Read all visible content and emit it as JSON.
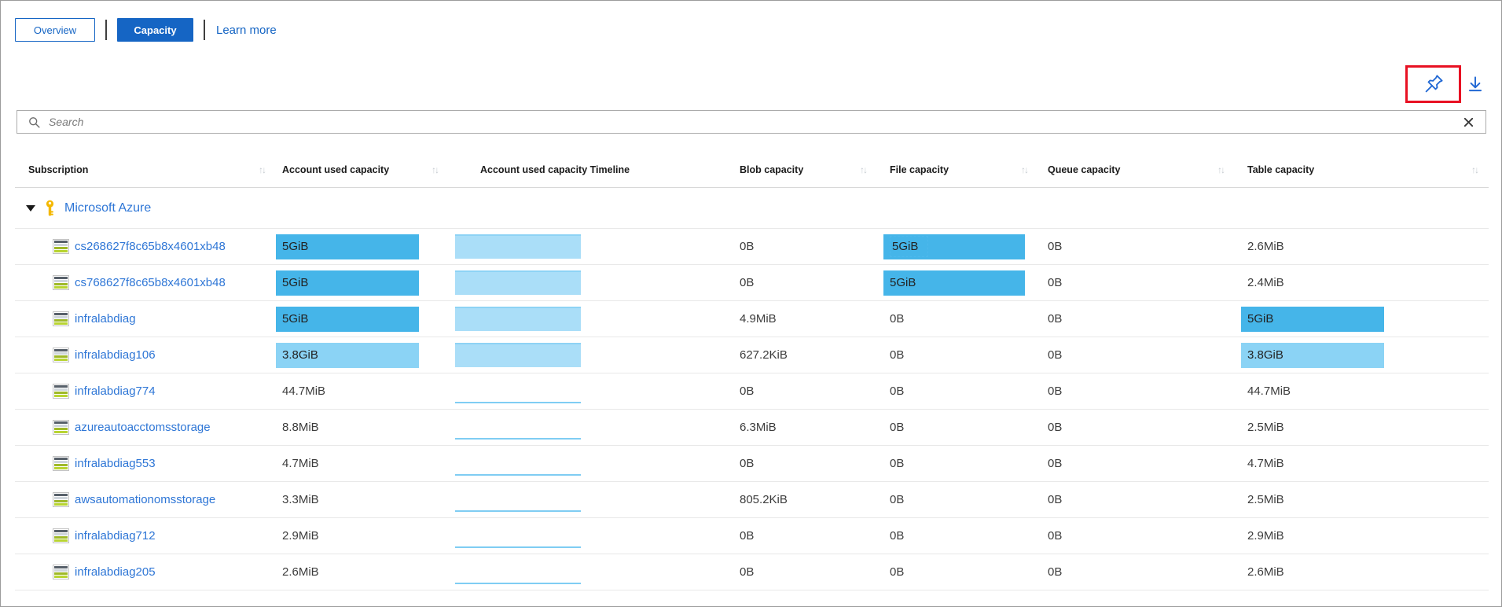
{
  "toolbar": {
    "overview_label": "Overview",
    "capacity_label": "Capacity",
    "learn_more_label": "Learn more"
  },
  "icons": {
    "pin": "pushpin-icon",
    "download": "download-icon",
    "search": "magnifier-icon",
    "clear": "x-icon",
    "sort_glyph": "↑↓",
    "expander": "collapse-triangle",
    "group_key": "key-icon",
    "row_icon": "storage-account-icon"
  },
  "colors": {
    "accent_blue": "#1565c4",
    "link_blue": "#2e76d6",
    "red_highlight": "#e81123",
    "bar_strong": "#45b5e9",
    "bar_light": "#8bd3f5",
    "timeline_fill": "#aadef8",
    "timeline_edge": "#8ed3f5",
    "sparkline": "#7fcdf3"
  },
  "search": {
    "placeholder": "Search",
    "value": ""
  },
  "table": {
    "columns": [
      {
        "label": "Subscription",
        "sortable": true
      },
      {
        "label": "Account used capacity",
        "sortable": true
      },
      {
        "label": "Account used capacity Timeline",
        "sortable": false
      },
      {
        "label": "Blob capacity",
        "sortable": true
      },
      {
        "label": "File capacity",
        "sortable": true
      },
      {
        "label": "Queue capacity",
        "sortable": true
      },
      {
        "label": "Table capacity",
        "sortable": true
      }
    ],
    "group": {
      "label": "Microsoft Azure",
      "expanded": true
    },
    "rows": [
      {
        "name": "cs268627f8c65b8x4601xb48",
        "account": {
          "text": "5GiB",
          "bar": "strong"
        },
        "timeline": "area",
        "blob": "0B",
        "file": {
          "text": "5GiB",
          "bar": "strong",
          "focus": true
        },
        "queue": "0B",
        "table": {
          "text": "2.6MiB",
          "bar": null
        }
      },
      {
        "name": "cs768627f8c65b8x4601xb48",
        "account": {
          "text": "5GiB",
          "bar": "strong"
        },
        "timeline": "area",
        "blob": "0B",
        "file": {
          "text": "5GiB",
          "bar": "strong"
        },
        "queue": "0B",
        "table": {
          "text": "2.4MiB",
          "bar": null
        }
      },
      {
        "name": "infralabdiag",
        "account": {
          "text": "5GiB",
          "bar": "strong"
        },
        "timeline": "area",
        "blob": "4.9MiB",
        "file": {
          "text": "0B",
          "bar": null
        },
        "queue": "0B",
        "table": {
          "text": "5GiB",
          "bar": "strong"
        }
      },
      {
        "name": "infralabdiag106",
        "account": {
          "text": "3.8GiB",
          "bar": "light"
        },
        "timeline": "area",
        "blob": "627.2KiB",
        "file": {
          "text": "0B",
          "bar": null
        },
        "queue": "0B",
        "table": {
          "text": "3.8GiB",
          "bar": "light"
        }
      },
      {
        "name": "infralabdiag774",
        "account": {
          "text": "44.7MiB",
          "bar": null
        },
        "timeline": "line",
        "blob": "0B",
        "file": {
          "text": "0B",
          "bar": null
        },
        "queue": "0B",
        "table": {
          "text": "44.7MiB",
          "bar": null
        }
      },
      {
        "name": "azureautoacctomsstorage",
        "account": {
          "text": "8.8MiB",
          "bar": null
        },
        "timeline": "line",
        "blob": "6.3MiB",
        "file": {
          "text": "0B",
          "bar": null
        },
        "queue": "0B",
        "table": {
          "text": "2.5MiB",
          "bar": null
        }
      },
      {
        "name": "infralabdiag553",
        "account": {
          "text": "4.7MiB",
          "bar": null
        },
        "timeline": "line",
        "blob": "0B",
        "file": {
          "text": "0B",
          "bar": null
        },
        "queue": "0B",
        "table": {
          "text": "4.7MiB",
          "bar": null
        }
      },
      {
        "name": "awsautomationomsstorage",
        "account": {
          "text": "3.3MiB",
          "bar": null
        },
        "timeline": "line",
        "blob": "805.2KiB",
        "file": {
          "text": "0B",
          "bar": null
        },
        "queue": "0B",
        "table": {
          "text": "2.5MiB",
          "bar": null
        }
      },
      {
        "name": "infralabdiag712",
        "account": {
          "text": "2.9MiB",
          "bar": null
        },
        "timeline": "line",
        "blob": "0B",
        "file": {
          "text": "0B",
          "bar": null
        },
        "queue": "0B",
        "table": {
          "text": "2.9MiB",
          "bar": null
        }
      },
      {
        "name": "infralabdiag205",
        "account": {
          "text": "2.6MiB",
          "bar": null
        },
        "timeline": "line",
        "blob": "0B",
        "file": {
          "text": "0B",
          "bar": null
        },
        "queue": "0B",
        "table": {
          "text": "2.6MiB",
          "bar": null
        }
      }
    ]
  }
}
